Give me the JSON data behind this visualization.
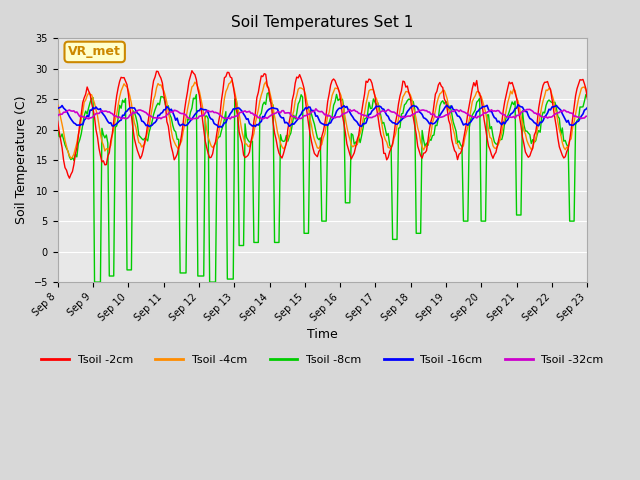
{
  "title": "Soil Temperatures Set 1",
  "xlabel": "Time",
  "ylabel": "Soil Temperature (C)",
  "ylim": [
    -5,
    35
  ],
  "yticks": [
    -5,
    0,
    5,
    10,
    15,
    20,
    25,
    30,
    35
  ],
  "x_labels": [
    "Sep 8",
    "Sep 9",
    "Sep 10",
    "Sep 11",
    "Sep 12",
    "Sep 13",
    "Sep 14",
    "Sep 15",
    "Sep 16",
    "Sep 17",
    "Sep 18",
    "Sep 19",
    "Sep 20",
    "Sep 21",
    "Sep 22",
    "Sep 23"
  ],
  "n_days": 15,
  "pts_per_day": 24,
  "colors": {
    "Tsoil -2cm": "#ff0000",
    "Tsoil -4cm": "#ff8c00",
    "Tsoil -8cm": "#00cc00",
    "Tsoil -16cm": "#0000ff",
    "Tsoil -32cm": "#cc00cc"
  },
  "background_color": "#d8d8d8",
  "plot_bg": "#e8e8e8",
  "annotation_text": "VR_met",
  "annotation_color": "#cc8800",
  "annotation_bg": "#ffffcc"
}
